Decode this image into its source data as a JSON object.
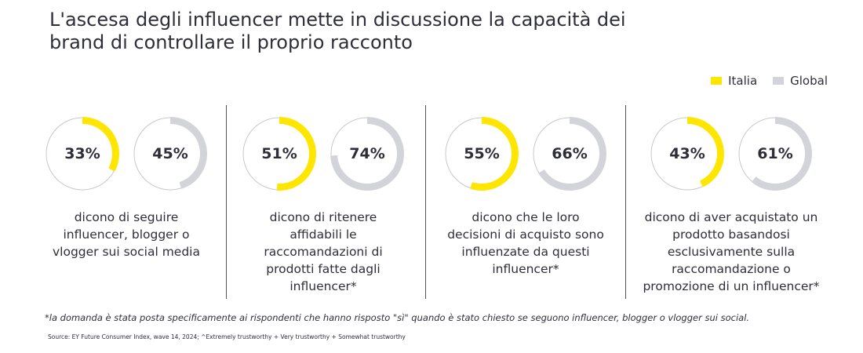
{
  "title": "L'ascesa degli influencer mette in discussione la capacità dei brand di controllare il proprio racconto",
  "legend": [
    {
      "label": "Italia",
      "color": "#ffe600"
    },
    {
      "label": "Global",
      "color": "#d3d3da"
    }
  ],
  "chart_data": {
    "type": "donut",
    "title": "L'ascesa degli influencer mette in discussione la capacità dei brand di controllare il proprio racconto",
    "series": [
      {
        "name": "Italia",
        "color": "#ffe600",
        "values": [
          33,
          51,
          55,
          43
        ]
      },
      {
        "name": "Global",
        "color": "#d3d3da",
        "values": [
          45,
          74,
          66,
          61
        ]
      }
    ],
    "groups": [
      {
        "italia": {
          "value": 33,
          "label": "33%"
        },
        "global": {
          "value": 45,
          "label": "45%"
        },
        "caption": [
          "dicono di seguire",
          "influencer, blogger o",
          "vlogger sui social media"
        ]
      },
      {
        "italia": {
          "value": 51,
          "label": "51%"
        },
        "global": {
          "value": 74,
          "label": "74%"
        },
        "caption": [
          "dicono di ritenere",
          "affidabili le",
          "raccomandazioni di",
          "prodotti fatte dagli",
          "influencer*"
        ]
      },
      {
        "italia": {
          "value": 55,
          "label": "55%"
        },
        "global": {
          "value": 66,
          "label": "66%"
        },
        "caption": [
          "dicono che le loro",
          "decisioni di acquisto sono",
          "influenzate da questi",
          "influencer*"
        ]
      },
      {
        "italia": {
          "value": 43,
          "label": "43%"
        },
        "global": {
          "value": 61,
          "label": "61%"
        },
        "caption": [
          "dicono di aver acquistato un",
          "prodotto basandosi",
          "esclusivamente sulla",
          "raccomandazione o",
          "promozione di un influencer*"
        ]
      }
    ],
    "legend_position": "top-right"
  },
  "footnote": "*la domanda è stata posta specificamente ai rispondenti che hanno risposto \"sì\" quando è stato chiesto se seguono influencer, blogger o vlogger sui social.",
  "source": "Source: EY Future Consumer Index, wave 14, 2024; ^Extremely trustworthy + Very trustworthy + Somewhat trustworthy",
  "colors": {
    "italia": "#ffe600",
    "global": "#d3d3da",
    "track": "#c8c8c8",
    "text": "#2e2e38"
  }
}
